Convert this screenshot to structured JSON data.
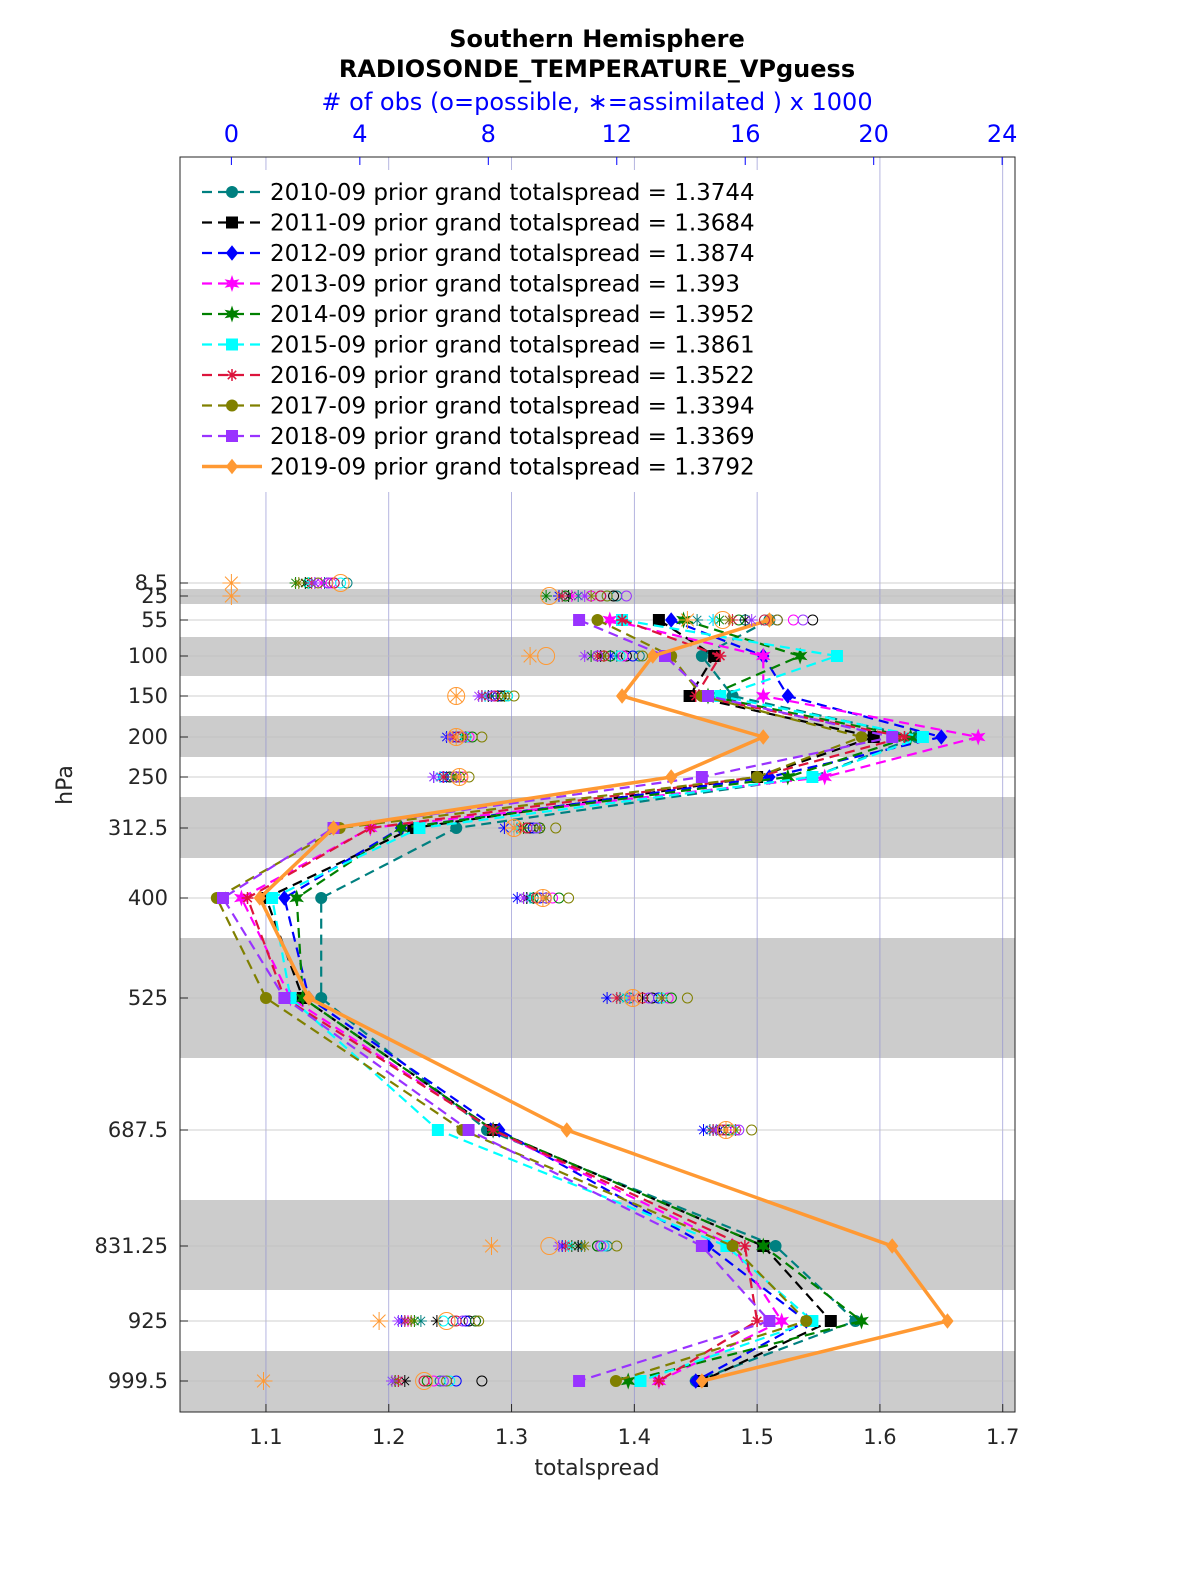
{
  "chart_data": {
    "type": "line",
    "title": "Southern Hemisphere",
    "subtitle": "RADIOSONDE_TEMPERATURE_VPguess",
    "top_axis_label": "# of obs (o=possible, ∗=assimilated ) x 1000",
    "xlabel": "totalspread",
    "ylabel": "hPa",
    "xlim": [
      1.03,
      1.71
    ],
    "top_xlim": [
      -1.6,
      24.4
    ],
    "x_ticks": [
      "1.1",
      "1.2",
      "1.3",
      "1.4",
      "1.5",
      "1.6",
      "1.7"
    ],
    "top_ticks": [
      "0",
      "4",
      "8",
      "12",
      "16",
      "20",
      "24"
    ],
    "levels": [
      8.5,
      25,
      55,
      100,
      150,
      200,
      250,
      312.5,
      400,
      525,
      687.5,
      831.25,
      925,
      999.5
    ],
    "level_labels": [
      "8.5",
      "25",
      "55",
      "100",
      "150",
      "200",
      "250",
      "312.5",
      "400",
      "525",
      "687.5",
      "831.25",
      "925",
      "999.5"
    ],
    "bands": [
      [
        20,
        30
      ],
      [
        75,
        125
      ],
      [
        175,
        225
      ],
      [
        275,
        350
      ],
      [
        450,
        600
      ],
      [
        775,
        900
      ],
      [
        975,
        1025
      ]
    ],
    "series": [
      {
        "name": "2010-09 prior grand totalspread = 1.3744",
        "color": "#008080",
        "marker": "circle",
        "values": [
          null,
          null,
          1.51,
          1.455,
          1.48,
          1.63,
          1.545,
          1.255,
          1.145,
          1.145,
          1.28,
          1.515,
          1.58,
          1.45
        ],
        "possible": [
          3.6,
          12.0,
          16.0,
          12.7,
          8.5,
          7.3,
          7.0,
          9.2,
          9.4,
          12.4,
          15.2,
          11.7,
          6.9,
          6.5
        ],
        "assimilated": [
          2.9,
          10.8,
          14.5,
          12.0,
          8.1,
          7.0,
          6.7,
          8.9,
          9.2,
          12.1,
          14.9,
          10.9,
          5.9,
          5.2
        ]
      },
      {
        "name": "2011-09 prior grand totalspread = 1.3684",
        "color": "#000000",
        "marker": "square",
        "values": [
          null,
          null,
          1.42,
          1.465,
          1.445,
          1.595,
          1.5,
          1.22,
          1.1,
          1.13,
          1.285,
          1.505,
          1.56,
          1.455
        ],
        "possible": [
          3.0,
          11.9,
          18.1,
          12.3,
          8.4,
          7.1,
          6.8,
          9.3,
          9.5,
          13.1,
          15.5,
          11.4,
          7.4,
          7.8
        ],
        "assimilated": [
          2.3,
          10.5,
          16.0,
          11.5,
          8.0,
          6.8,
          6.5,
          9.0,
          9.2,
          12.8,
          15.2,
          10.8,
          6.4,
          5.4
        ]
      },
      {
        "name": "2012-09 prior grand totalspread = 1.3874",
        "color": "#0000ff",
        "marker": "diamond",
        "values": [
          null,
          null,
          1.43,
          1.505,
          1.525,
          1.65,
          1.51,
          1.21,
          1.115,
          1.135,
          1.29,
          1.46,
          1.54,
          1.45
        ],
        "possible": [
          3.2,
          11.5,
          17.0,
          12.5,
          8.3,
          7.0,
          6.6,
          9.4,
          9.6,
          13.3,
          15.4,
          11.6,
          7.3,
          7.0
        ],
        "assimilated": [
          2.6,
          10.2,
          15.0,
          11.8,
          7.8,
          6.7,
          6.3,
          8.5,
          8.9,
          11.7,
          14.7,
          10.3,
          5.3,
          5.1
        ]
      },
      {
        "name": "2013-09 prior grand totalspread = 1.393",
        "color": "#ff00ff",
        "marker": "hexagram",
        "values": [
          null,
          null,
          1.38,
          1.505,
          1.505,
          1.68,
          1.555,
          1.185,
          1.08,
          1.12,
          1.285,
          1.48,
          1.52,
          1.42
        ],
        "possible": [
          3.1,
          11.2,
          17.5,
          12.2,
          8.2,
          7.4,
          7.2,
          9.6,
          10.0,
          13.6,
          15.7,
          11.6,
          7.6,
          6.3
        ],
        "assimilated": [
          2.8,
          10.6,
          15.5,
          11.6,
          7.9,
          6.9,
          6.6,
          8.8,
          9.1,
          12.5,
          15.0,
          10.6,
          5.5,
          5.2
        ]
      },
      {
        "name": "2014-09 prior grand totalspread = 1.3952",
        "color": "#008000",
        "marker": "hexagram",
        "values": [
          null,
          null,
          1.44,
          1.535,
          1.46,
          1.625,
          1.525,
          1.21,
          1.125,
          1.13,
          1.285,
          1.505,
          1.585,
          1.395
        ],
        "possible": [
          2.4,
          10.4,
          15.8,
          11.8,
          8.6,
          7.5,
          7.1,
          9.6,
          10.2,
          13.7,
          15.5,
          11.4,
          7.6,
          6.1
        ],
        "assimilated": [
          2.0,
          9.8,
          15.2,
          11.2,
          8.3,
          7.2,
          6.9,
          9.1,
          9.4,
          12.3,
          15.0,
          10.6,
          5.7,
          5.1
        ]
      },
      {
        "name": "2015-09 prior grand totalspread = 1.3861",
        "color": "#00ffff",
        "marker": "square",
        "values": [
          null,
          null,
          1.39,
          1.565,
          1.47,
          1.635,
          1.545,
          1.225,
          1.105,
          1.12,
          1.24,
          1.475,
          1.545,
          1.405
        ],
        "possible": [
          3.4,
          11.7,
          16.6,
          12.1,
          8.6,
          7.3,
          7.0,
          9.5,
          9.8,
          13.4,
          15.6,
          11.6,
          6.6,
          6.8
        ],
        "assimilated": [
          2.4,
          10.3,
          15.0,
          11.4,
          7.9,
          6.8,
          6.5,
          8.9,
          9.3,
          12.3,
          15.0,
          10.5,
          5.4,
          5.0
        ]
      },
      {
        "name": "2016-09 prior grand totalspread = 1.3522",
        "color": "#dc143c",
        "marker": "asterisk",
        "values": [
          null,
          null,
          1.39,
          1.47,
          1.45,
          1.62,
          1.5,
          1.185,
          1.085,
          1.115,
          1.285,
          1.49,
          1.5,
          1.42
        ],
        "possible": [
          3.2,
          11.5,
          16.6,
          11.6,
          8.2,
          7.1,
          7.0,
          9.2,
          9.5,
          12.8,
          15.3,
          11.5,
          7.0,
          6.0
        ],
        "assimilated": [
          2.5,
          10.3,
          15.6,
          11.4,
          7.8,
          6.9,
          6.6,
          9.0,
          9.1,
          12.0,
          15.0,
          10.4,
          5.4,
          5.2
        ]
      },
      {
        "name": "2017-09 prior grand totalspread = 1.3394",
        "color": "#808000",
        "marker": "circle",
        "values": [
          null,
          null,
          1.37,
          1.43,
          1.455,
          1.585,
          1.5,
          1.16,
          1.06,
          1.1,
          1.26,
          1.48,
          1.54,
          1.385
        ],
        "possible": [
          2.7,
          11.7,
          17.0,
          12.8,
          8.8,
          7.8,
          7.4,
          10.1,
          10.5,
          14.2,
          16.2,
          12.0,
          7.7,
          6.7
        ],
        "assimilated": [
          2.1,
          11.2,
          15.5,
          11.6,
          8.5,
          7.3,
          7.0,
          9.6,
          9.8,
          13.4,
          15.7,
          11.0,
          5.6,
          5.1
        ]
      },
      {
        "name": "2018-09 prior grand totalspread = 1.3369",
        "color": "#9933ff",
        "marker": "square",
        "values": [
          null,
          null,
          1.355,
          1.425,
          1.46,
          1.61,
          1.455,
          1.155,
          1.065,
          1.115,
          1.265,
          1.455,
          1.51,
          1.355
        ],
        "possible": [
          3.0,
          12.3,
          17.8,
          11.4,
          8.1,
          7.2,
          7.0,
          9.5,
          9.8,
          13.0,
          15.8,
          11.5,
          7.2,
          6.6
        ],
        "assimilated": [
          2.6,
          11.0,
          16.2,
          11.0,
          7.7,
          6.8,
          6.3,
          8.8,
          9.1,
          12.4,
          15.1,
          10.2,
          5.2,
          5.0
        ]
      },
      {
        "name": "2019-09 prior grand totalspread = 1.3792",
        "color": "#ff9933",
        "marker": "diamond",
        "values": [
          null,
          null,
          1.51,
          1.415,
          1.39,
          1.505,
          1.43,
          1.155,
          1.095,
          1.135,
          1.345,
          1.61,
          1.655,
          1.455
        ],
        "possible": [
          3.4,
          9.9,
          15.3,
          9.8,
          7.0,
          7.0,
          7.1,
          8.8,
          9.7,
          12.5,
          15.4,
          9.9,
          6.7,
          6.0
        ],
        "assimilated": [
          0.0,
          0.0,
          14.2,
          9.3,
          7.0,
          7.0,
          7.1,
          8.8,
          9.7,
          12.5,
          15.4,
          8.1,
          4.6,
          1.0
        ]
      }
    ]
  }
}
